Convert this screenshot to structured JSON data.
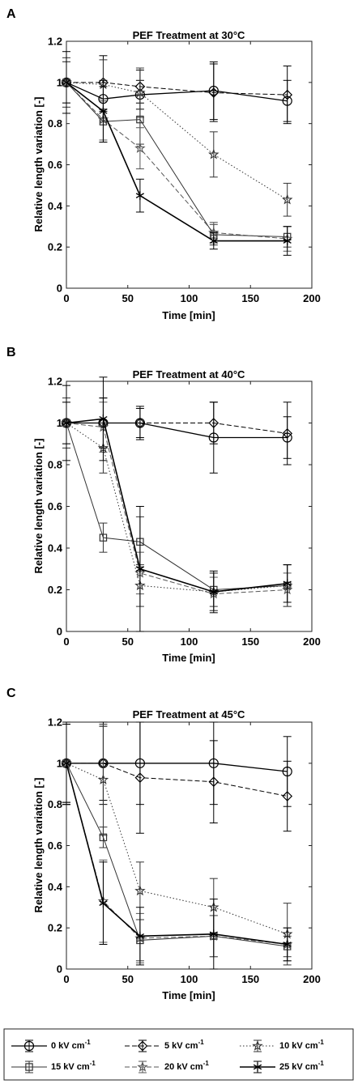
{
  "chart_data": [
    {
      "type": "line",
      "panel_label": "A",
      "title": "PEF Treatment at 30°C",
      "xlabel": "Time [min]",
      "ylabel": "Relative length variation [-]",
      "xlim": [
        0,
        200
      ],
      "ylim": [
        0,
        1.2
      ],
      "xticks": [
        "0",
        "50",
        "100",
        "150",
        "200"
      ],
      "yticks": [
        "0",
        "0.2",
        "0.4",
        "0.6",
        "0.8",
        "1",
        "1.2"
      ],
      "x": [
        0,
        30,
        60,
        120,
        180
      ],
      "series": [
        {
          "name": "0 kV cm-1",
          "values": [
            1.0,
            0.92,
            0.94,
            0.96,
            0.91
          ],
          "err": [
            0.1,
            0.06,
            0.07,
            0.14,
            0.1
          ]
        },
        {
          "name": "5 kV cm-1",
          "values": [
            1.0,
            1.0,
            0.98,
            0.95,
            0.94
          ],
          "err": [
            0.1,
            0.13,
            0.08,
            0.14,
            0.14
          ]
        },
        {
          "name": "10 kV cm-1",
          "values": [
            1.0,
            0.99,
            0.95,
            0.65,
            0.43
          ],
          "err": [
            0.12,
            0.12,
            0.12,
            0.11,
            0.08
          ]
        },
        {
          "name": "15 kV cm-1",
          "values": [
            1.0,
            0.81,
            0.82,
            0.26,
            0.25
          ],
          "err": [
            0.1,
            0.1,
            0.12,
            0.05,
            0.05
          ]
        },
        {
          "name": "20 kV cm-1",
          "values": [
            1.0,
            0.82,
            0.68,
            0.27,
            0.24
          ],
          "err": [
            0.1,
            0.1,
            0.1,
            0.05,
            0.06
          ]
        },
        {
          "name": "25 kV cm-1",
          "values": [
            1.0,
            0.86,
            0.45,
            0.23,
            0.23
          ],
          "err": [
            0.15,
            0.15,
            0.08,
            0.04,
            0.07
          ]
        }
      ]
    },
    {
      "type": "line",
      "panel_label": "B",
      "title": "PEF Treatment at 40°C",
      "xlabel": "Time [min]",
      "ylabel": "Relative length variation [-]",
      "xlim": [
        0,
        200
      ],
      "ylim": [
        0,
        1.2
      ],
      "xticks": [
        "0",
        "50",
        "100",
        "150",
        "200"
      ],
      "yticks": [
        "0",
        "0.2",
        "0.4",
        "0.6",
        "0.8",
        "1",
        "1.2"
      ],
      "x": [
        0,
        30,
        60,
        120,
        180
      ],
      "series": [
        {
          "name": "0 kV cm-1",
          "values": [
            1.0,
            1.0,
            1.0,
            0.93,
            0.93
          ],
          "err": [
            0.1,
            0.12,
            0.08,
            0.17,
            0.1
          ]
        },
        {
          "name": "5 kV cm-1",
          "values": [
            1.0,
            1.0,
            1.0,
            1.0,
            0.95
          ],
          "err": [
            0.1,
            0.12,
            0.07,
            0.1,
            0.15
          ]
        },
        {
          "name": "10 kV cm-1",
          "values": [
            1.0,
            0.88,
            0.22,
            0.19,
            0.22
          ],
          "err": [
            0.12,
            0.12,
            0.1,
            0.09,
            0.1
          ]
        },
        {
          "name": "15 kV cm-1",
          "values": [
            1.0,
            0.45,
            0.43,
            0.2,
            0.22
          ],
          "err": [
            0.1,
            0.07,
            0.12,
            0.08,
            0.1
          ]
        },
        {
          "name": "20 kV cm-1",
          "values": [
            1.0,
            0.98,
            0.28,
            0.18,
            0.2
          ],
          "err": [
            0.1,
            0.12,
            0.1,
            0.08,
            0.08
          ]
        },
        {
          "name": "25 kV cm-1",
          "values": [
            1.0,
            1.02,
            0.3,
            0.19,
            0.23
          ],
          "err": [
            0.18,
            0.2,
            0.3,
            0.1,
            0.09
          ]
        }
      ]
    },
    {
      "type": "line",
      "panel_label": "C",
      "title": "PEF Treatment at 45°C",
      "xlabel": "Time [min]",
      "ylabel": "Relative length variation [-]",
      "xlim": [
        0,
        200
      ],
      "ylim": [
        0,
        1.2
      ],
      "xticks": [
        "0",
        "50",
        "100",
        "150",
        "200"
      ],
      "yticks": [
        "0",
        "0.2",
        "0.4",
        "0.6",
        "0.8",
        "1",
        "1.2"
      ],
      "x": [
        0,
        30,
        60,
        120,
        180
      ],
      "series": [
        {
          "name": "0 kV cm-1",
          "values": [
            1.0,
            1.0,
            1.0,
            1.0,
            0.96
          ],
          "err": [
            0.19,
            0.2,
            0.2,
            0.2,
            0.17
          ]
        },
        {
          "name": "5 kV cm-1",
          "values": [
            1.0,
            1.0,
            0.93,
            0.91,
            0.84
          ],
          "err": [
            0.19,
            0.18,
            0.27,
            0.2,
            0.17
          ]
        },
        {
          "name": "10 kV cm-1",
          "values": [
            1.0,
            0.92,
            0.38,
            0.3,
            0.17
          ],
          "err": [
            0.2,
            0.27,
            0.14,
            0.14,
            0.15
          ]
        },
        {
          "name": "15 kV cm-1",
          "values": [
            1.0,
            0.64,
            0.14,
            0.16,
            0.11
          ],
          "err": [
            0.2,
            0.05,
            0.1,
            0.1,
            0.05
          ]
        },
        {
          "name": "20 kV cm-1",
          "values": [
            1.0,
            0.33,
            0.15,
            0.16,
            0.12
          ],
          "err": [
            0.2,
            0.2,
            0.12,
            0.1,
            0.08
          ]
        },
        {
          "name": "25 kV cm-1",
          "values": [
            1.0,
            0.32,
            0.16,
            0.17,
            0.12
          ],
          "err": [
            0.2,
            0.2,
            0.14,
            0.17,
            0.08
          ]
        }
      ]
    }
  ],
  "legend": {
    "entries": [
      {
        "label": "0 kV cm",
        "sup": "-1"
      },
      {
        "label": "5 kV cm",
        "sup": "-1"
      },
      {
        "label": "10 kV cm",
        "sup": "-1"
      },
      {
        "label": "15 kV cm",
        "sup": "-1"
      },
      {
        "label": "20 kV cm",
        "sup": "-1"
      },
      {
        "label": "25 kV cm",
        "sup": "-1"
      }
    ]
  },
  "series_styles": [
    {
      "marker": "circle",
      "dash": "",
      "color": "#000000",
      "width": 1.3
    },
    {
      "marker": "diamond",
      "dash": "6,3",
      "color": "#000000",
      "width": 1.0
    },
    {
      "marker": "star",
      "dash": "1.5,2.5",
      "color": "#333333",
      "width": 1.0
    },
    {
      "marker": "square",
      "dash": "",
      "color": "#333333",
      "width": 1.0
    },
    {
      "marker": "star",
      "dash": "6,3",
      "color": "#555555",
      "width": 1.0
    },
    {
      "marker": "asterisk",
      "dash": "",
      "color": "#000000",
      "width": 1.6
    }
  ]
}
